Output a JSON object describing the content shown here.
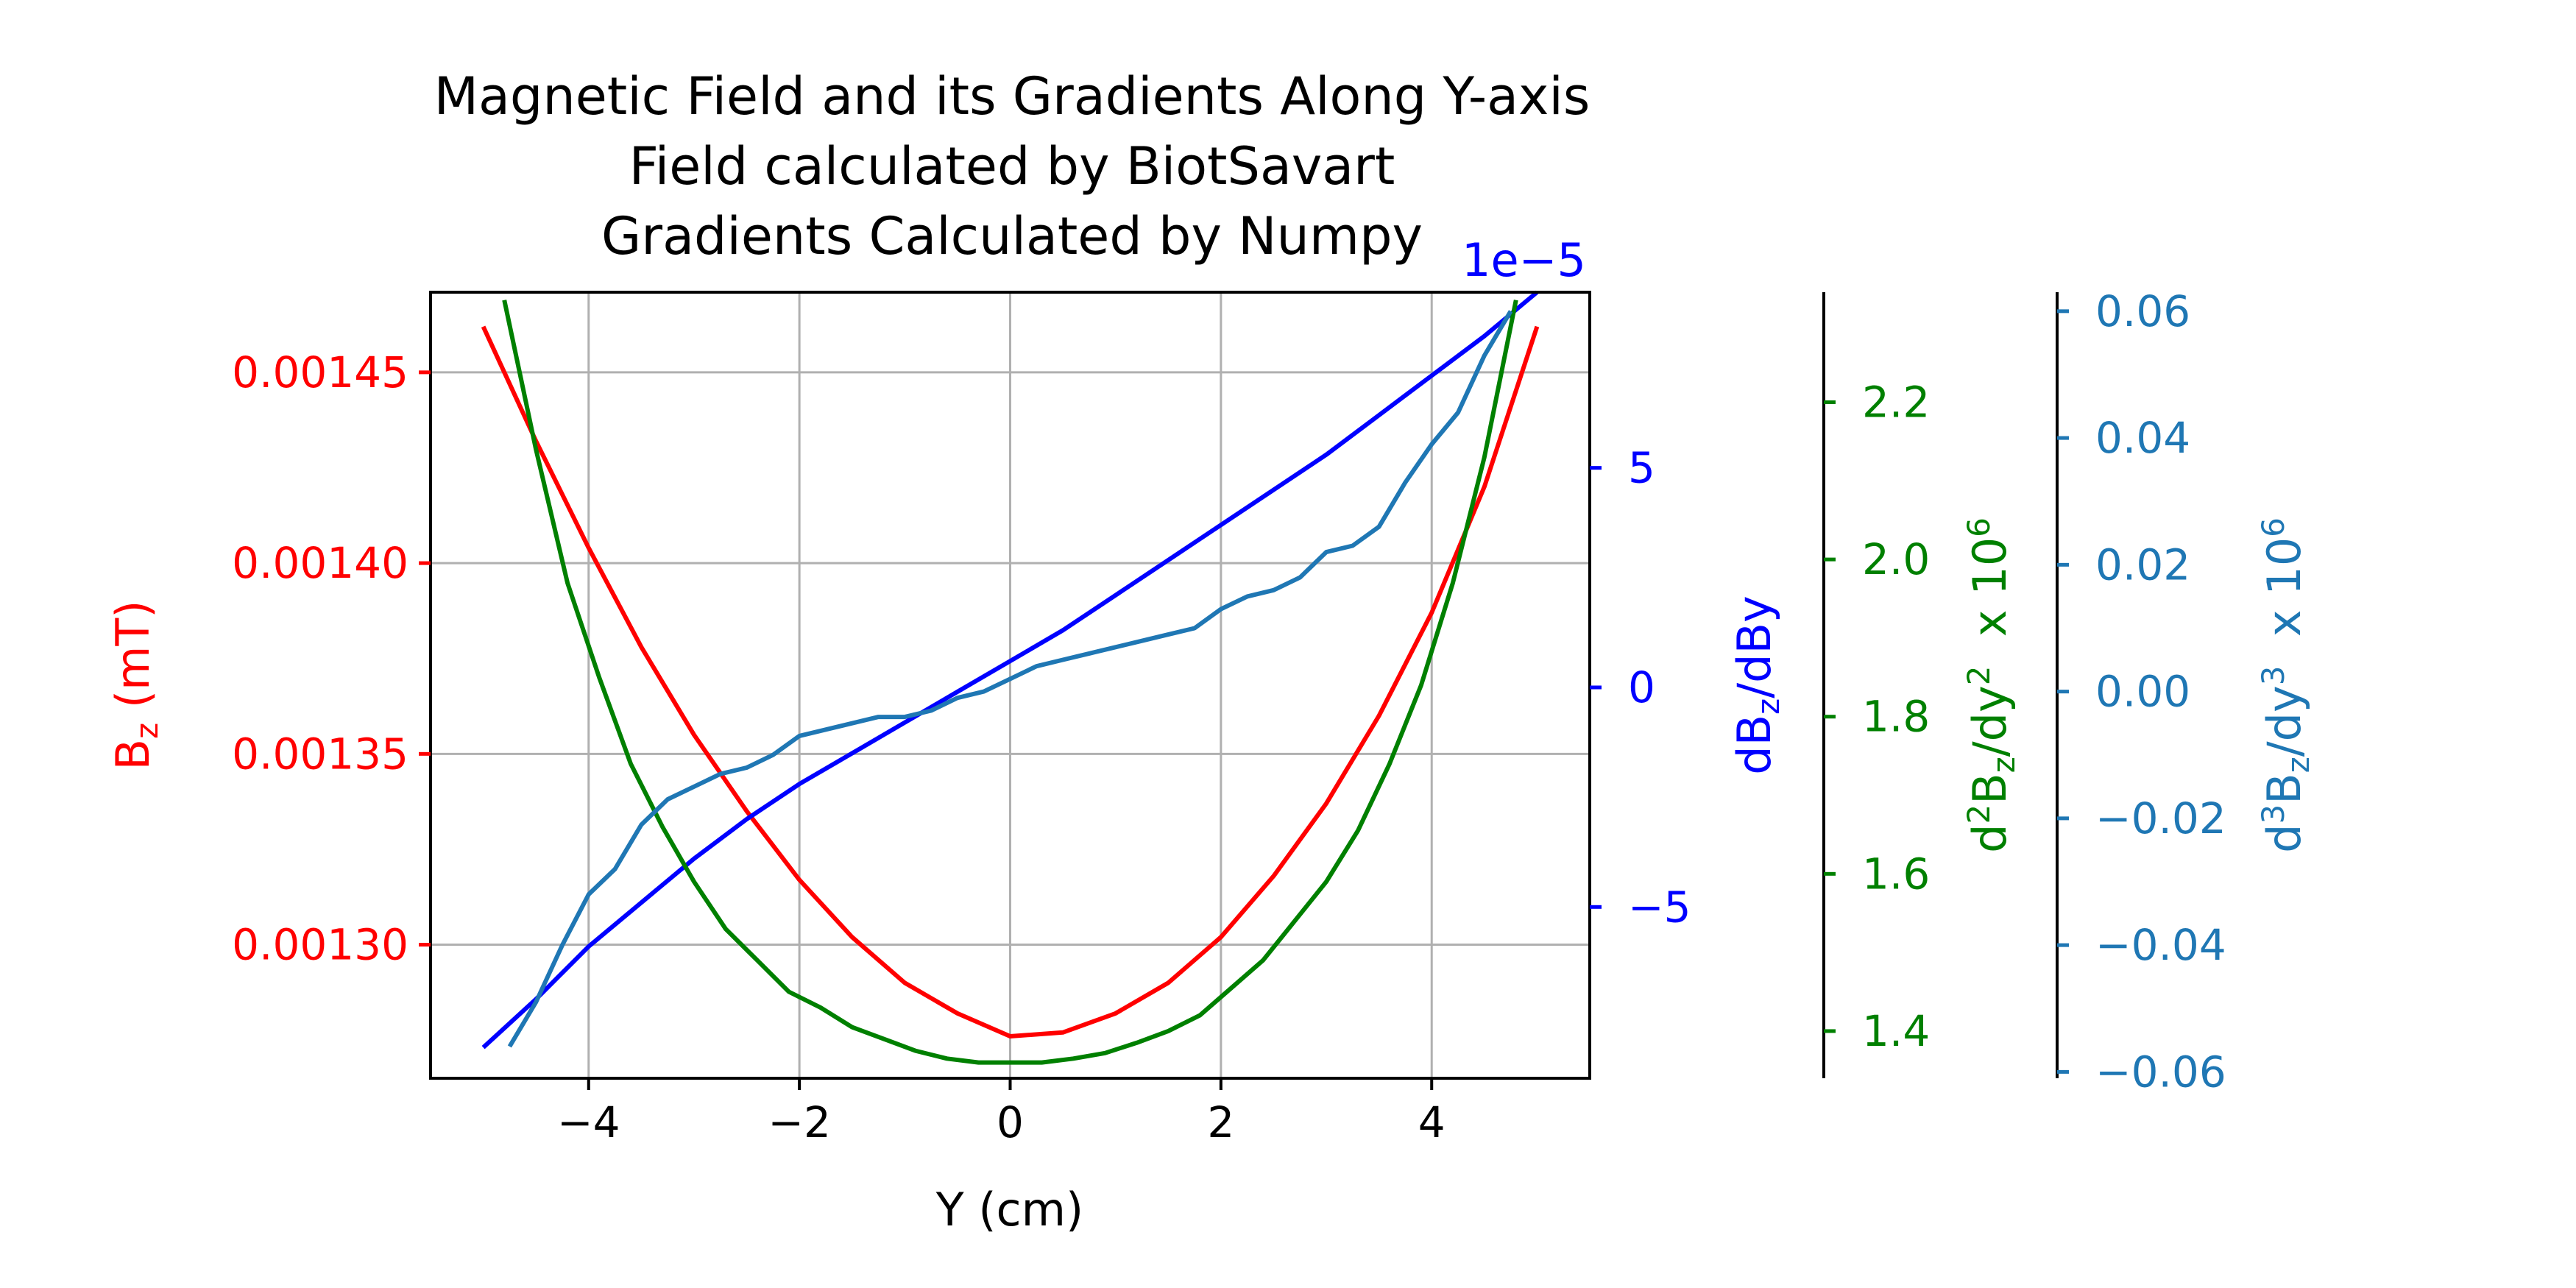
{
  "chart_data": {
    "type": "line",
    "title_lines": [
      "Magnetic Field and its Gradients Along Y-axis",
      "Field calculated by BiotSavart",
      "Gradients Calculated by Numpy"
    ],
    "xlabel": "Y (cm)",
    "xlim": [
      -5.5,
      5.5
    ],
    "x_ticks": [
      -4,
      -2,
      0,
      2,
      4
    ],
    "x_tick_labels": [
      "−4",
      "−2",
      "0",
      "2",
      "4"
    ],
    "grid": true,
    "colors": {
      "bz": "#ff0000",
      "dbz": "#0000ff",
      "d2bz": "#008000",
      "d3bz": "#1f77b4",
      "axes": "#000000",
      "grid": "#b0b0b0"
    },
    "axes": {
      "bz": {
        "label_main": "B",
        "label_sub": "z",
        "label_tail": " (mT)",
        "lim": [
          0.001265,
          0.001471
        ],
        "ticks": [
          0.0013,
          0.00135,
          0.0014,
          0.00145
        ],
        "tick_labels": [
          "0.00130",
          "0.00135",
          "0.00140",
          "0.00145"
        ]
      },
      "dbz": {
        "label_main": "dB",
        "label_sub": "z",
        "label_tail": "/dBy",
        "offset_text": "1e−5",
        "lim": [
          -8.9,
          9.0
        ],
        "ticks": [
          -5,
          0,
          5
        ],
        "tick_labels": [
          "−5",
          "0",
          "5"
        ]
      },
      "d2bz": {
        "label_d": "d",
        "label_exp": "2",
        "label_b": "B",
        "label_sub": "z",
        "label_mid": "/dy",
        "label_exp2": "2",
        "label_x": "  x 10",
        "label_pow": "6",
        "lim": [
          1.34,
          2.34
        ],
        "ticks": [
          1.4,
          1.6,
          1.8,
          2.0,
          2.2
        ],
        "tick_labels": [
          "1.4",
          "1.6",
          "1.8",
          "2.0",
          "2.2"
        ]
      },
      "d3bz": {
        "label_d": "d",
        "label_exp": "3",
        "label_b": "B",
        "label_sub": "z",
        "label_mid": "/dy",
        "label_exp2": "3",
        "label_x": "  x 10",
        "label_pow": "6",
        "lim": [
          -0.061,
          0.063
        ],
        "ticks": [
          -0.06,
          -0.04,
          -0.02,
          0.0,
          0.02,
          0.04,
          0.06
        ],
        "tick_labels": [
          "−0.06",
          "−0.04",
          "−0.02",
          "0.00",
          "0.02",
          "0.04",
          "0.06"
        ]
      }
    },
    "series": [
      {
        "axis": "bz",
        "x": [
          -5.0,
          -4.5,
          -4.0,
          -3.5,
          -3.0,
          -2.5,
          -2.0,
          -1.5,
          -1.0,
          -0.5,
          0.0,
          0.5,
          1.0,
          1.5,
          2.0,
          2.5,
          3.0,
          3.5,
          4.0,
          4.5,
          5.0
        ],
        "y": [
          0.001462,
          0.001432,
          0.001404,
          0.001378,
          0.001355,
          0.001335,
          0.001317,
          0.001302,
          0.00129,
          0.001282,
          0.001276,
          0.001277,
          0.001282,
          0.00129,
          0.001302,
          0.001318,
          0.001337,
          0.00136,
          0.001387,
          0.00142,
          0.001462
        ]
      },
      {
        "axis": "dbz",
        "x": [
          -5.0,
          -4.5,
          -4.0,
          -3.5,
          -3.0,
          -2.5,
          -2.0,
          -1.5,
          -1.0,
          -0.5,
          0.0,
          0.5,
          1.0,
          1.5,
          2.0,
          2.5,
          3.0,
          3.5,
          4.0,
          4.5,
          5.0
        ],
        "y": [
          -8.2,
          -7.1,
          -5.9,
          -4.9,
          -3.9,
          -3.0,
          -2.2,
          -1.5,
          -0.8,
          -0.1,
          0.6,
          1.3,
          2.1,
          2.9,
          3.7,
          4.5,
          5.3,
          6.2,
          7.1,
          8.0,
          9.0
        ]
      },
      {
        "axis": "d2bz",
        "x": [
          -4.8,
          -4.5,
          -4.2,
          -3.9,
          -3.6,
          -3.3,
          -3.0,
          -2.7,
          -2.4,
          -2.1,
          -1.8,
          -1.5,
          -1.2,
          -0.9,
          -0.6,
          -0.3,
          0.0,
          0.3,
          0.6,
          0.9,
          1.2,
          1.5,
          1.8,
          2.1,
          2.4,
          2.7,
          3.0,
          3.3,
          3.6,
          3.9,
          4.2,
          4.5,
          4.8
        ],
        "y": [
          2.33,
          2.14,
          1.97,
          1.85,
          1.74,
          1.66,
          1.59,
          1.53,
          1.49,
          1.45,
          1.43,
          1.405,
          1.39,
          1.375,
          1.365,
          1.36,
          1.36,
          1.36,
          1.365,
          1.372,
          1.385,
          1.4,
          1.42,
          1.455,
          1.49,
          1.54,
          1.59,
          1.655,
          1.74,
          1.84,
          1.97,
          2.13,
          2.33
        ]
      },
      {
        "axis": "d3bz",
        "x": [
          -4.75,
          -4.5,
          -4.25,
          -4.0,
          -3.75,
          -3.5,
          -3.25,
          -3.0,
          -2.75,
          -2.5,
          -2.25,
          -2.0,
          -1.75,
          -1.5,
          -1.25,
          -1.0,
          -0.75,
          -0.5,
          -0.25,
          0.0,
          0.25,
          0.5,
          0.75,
          1.0,
          1.25,
          1.5,
          1.75,
          2.0,
          2.25,
          2.5,
          2.75,
          3.0,
          3.25,
          3.5,
          3.75,
          4.0,
          4.25,
          4.5,
          4.75
        ],
        "y": [
          -0.056,
          -0.049,
          -0.04,
          -0.032,
          -0.028,
          -0.021,
          -0.017,
          -0.015,
          -0.013,
          -0.012,
          -0.01,
          -0.007,
          -0.006,
          -0.005,
          -0.004,
          -0.004,
          -0.003,
          -0.001,
          0.0,
          0.002,
          0.004,
          0.005,
          0.006,
          0.007,
          0.008,
          0.009,
          0.01,
          0.013,
          0.015,
          0.016,
          0.018,
          0.022,
          0.023,
          0.026,
          0.033,
          0.039,
          0.044,
          0.053,
          0.06
        ]
      }
    ]
  }
}
